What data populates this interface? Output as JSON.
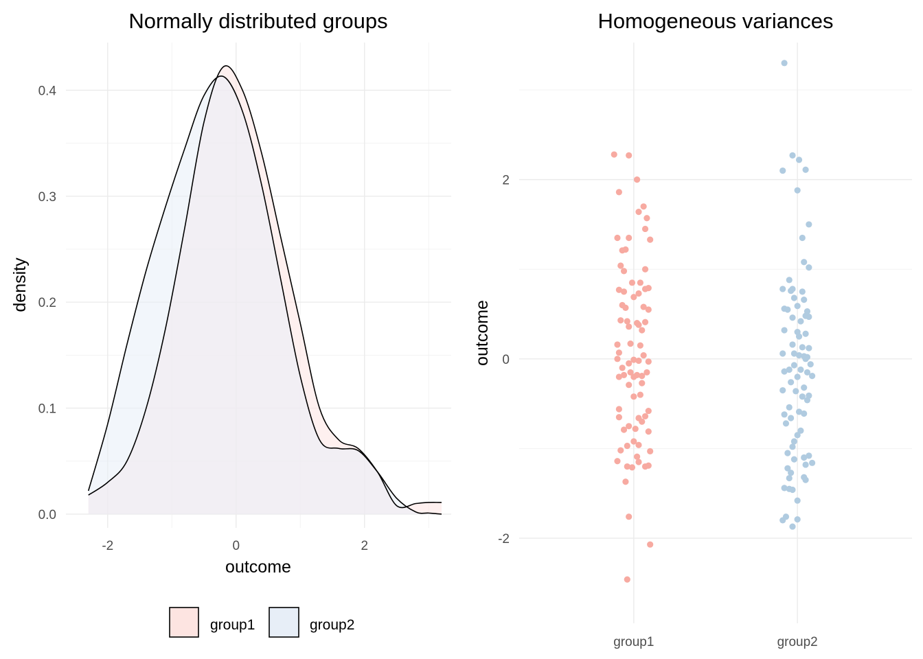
{
  "chart_data": [
    {
      "type": "area",
      "title": "Normally distributed groups",
      "xlabel": "outcome",
      "ylabel": "density",
      "xlim": [
        -2.65,
        3.35
      ],
      "ylim": [
        -0.013,
        0.445
      ],
      "x_ticks": [
        -2,
        0,
        2
      ],
      "x_tick_labels": [
        "-2",
        "0",
        "2"
      ],
      "y_ticks": [
        0.0,
        0.1,
        0.2,
        0.3,
        0.4
      ],
      "y_tick_labels": [
        "0.0",
        "0.1",
        "0.2",
        "0.3",
        "0.4"
      ],
      "grid": true,
      "legend_position": "bottom",
      "series": [
        {
          "name": "group1",
          "fill": "#fde4e1",
          "stroke": "#000000",
          "x": [
            -2.3,
            -2.0,
            -1.7,
            -1.4,
            -1.1,
            -0.8,
            -0.5,
            -0.2,
            0.1,
            0.4,
            0.7,
            1.0,
            1.3,
            1.6,
            1.9,
            2.2,
            2.5,
            2.8,
            3.0,
            3.2
          ],
          "y": [
            0.018,
            0.03,
            0.05,
            0.1,
            0.175,
            0.27,
            0.37,
            0.422,
            0.4,
            0.34,
            0.26,
            0.18,
            0.1,
            0.07,
            0.062,
            0.04,
            0.008,
            0.01,
            0.011,
            0.011
          ]
        },
        {
          "name": "group2",
          "fill": "#e7eef7",
          "stroke": "#000000",
          "x": [
            -2.3,
            -2.0,
            -1.7,
            -1.4,
            -1.1,
            -0.8,
            -0.5,
            -0.2,
            0.1,
            0.4,
            0.7,
            1.0,
            1.3,
            1.6,
            1.9,
            2.2,
            2.5,
            2.8,
            3.0,
            3.2
          ],
          "y": [
            0.022,
            0.085,
            0.16,
            0.23,
            0.29,
            0.345,
            0.395,
            0.413,
            0.38,
            0.31,
            0.22,
            0.13,
            0.07,
            0.062,
            0.06,
            0.04,
            0.015,
            0.002,
            0.001,
            0.0
          ]
        }
      ]
    },
    {
      "type": "scatter",
      "title": "Homogeneous variances",
      "xlabel": "",
      "ylabel": "outcome",
      "categories": [
        "group1",
        "group2"
      ],
      "ylim": [
        -2.75,
        3.3
      ],
      "y_ticks": [
        -2,
        0,
        2
      ],
      "y_tick_labels": [
        "-2",
        "0",
        "2"
      ],
      "grid": true,
      "series": [
        {
          "name": "group1",
          "color": "#f7aaa1",
          "points": [
            [
              -0.12,
              2.28
            ],
            [
              -0.03,
              2.27
            ],
            [
              0.02,
              2.0
            ],
            [
              -0.09,
              1.86
            ],
            [
              0.06,
              1.7
            ],
            [
              0.03,
              1.64
            ],
            [
              0.08,
              1.57
            ],
            [
              0.07,
              1.45
            ],
            [
              -0.1,
              1.35
            ],
            [
              -0.03,
              1.35
            ],
            [
              0.1,
              1.33
            ],
            [
              -0.07,
              1.21
            ],
            [
              -0.05,
              1.22
            ],
            [
              -0.08,
              1.04
            ],
            [
              -0.06,
              0.98
            ],
            [
              0.07,
              1.0
            ],
            [
              -0.01,
              0.85
            ],
            [
              0.04,
              0.85
            ],
            [
              -0.09,
              0.77
            ],
            [
              -0.06,
              0.75
            ],
            [
              0.07,
              0.78
            ],
            [
              0.09,
              0.79
            ],
            [
              0.03,
              0.73
            ],
            [
              0.0,
              0.69
            ],
            [
              -0.07,
              0.6
            ],
            [
              -0.05,
              0.57
            ],
            [
              0.06,
              0.58
            ],
            [
              0.09,
              0.55
            ],
            [
              -0.08,
              0.43
            ],
            [
              0.07,
              0.41
            ],
            [
              -0.03,
              0.36
            ],
            [
              -0.04,
              0.42
            ],
            [
              0.02,
              0.4
            ],
            [
              0.03,
              0.38
            ],
            [
              0.05,
              0.32
            ],
            [
              -0.1,
              0.16
            ],
            [
              -0.02,
              0.17
            ],
            [
              0.04,
              0.15
            ],
            [
              -0.09,
              0.07
            ],
            [
              0.06,
              0.04
            ],
            [
              -0.1,
              0.0
            ],
            [
              0.0,
              -0.01
            ],
            [
              0.03,
              -0.02
            ],
            [
              0.09,
              -0.03
            ],
            [
              -0.03,
              -0.05
            ],
            [
              -0.07,
              -0.1
            ],
            [
              -0.02,
              -0.15
            ],
            [
              0.02,
              -0.18
            ],
            [
              0.0,
              -0.2
            ],
            [
              -0.09,
              -0.2
            ],
            [
              -0.06,
              -0.18
            ],
            [
              0.05,
              -0.19
            ],
            [
              0.08,
              -0.15
            ],
            [
              -0.03,
              -0.29
            ],
            [
              0.05,
              -0.27
            ],
            [
              0.0,
              -0.42
            ],
            [
              0.04,
              -0.4
            ],
            [
              -0.09,
              -0.56
            ],
            [
              0.09,
              -0.58
            ],
            [
              0.07,
              -0.64
            ],
            [
              0.03,
              -0.66
            ],
            [
              -0.09,
              -0.65
            ],
            [
              0.05,
              -0.7
            ],
            [
              -0.03,
              -0.75
            ],
            [
              -0.06,
              -0.79
            ],
            [
              0.01,
              -0.78
            ],
            [
              0.09,
              -0.81
            ],
            [
              0.0,
              -0.92
            ],
            [
              0.03,
              -0.96
            ],
            [
              -0.04,
              -0.97
            ],
            [
              -0.08,
              -1.02
            ],
            [
              0.1,
              -1.03
            ],
            [
              0.02,
              -1.09
            ],
            [
              -0.1,
              -1.14
            ],
            [
              0.03,
              -1.15
            ],
            [
              -0.04,
              -1.2
            ],
            [
              -0.01,
              -1.21
            ],
            [
              0.07,
              -1.2
            ],
            [
              0.09,
              -1.19
            ],
            [
              -0.05,
              -1.37
            ],
            [
              -0.03,
              -1.76
            ],
            [
              0.1,
              -2.07
            ],
            [
              -0.04,
              -2.46
            ]
          ]
        },
        {
          "name": "group2",
          "color": "#b0cbe0",
          "points": [
            [
              -0.08,
              3.3
            ],
            [
              -0.03,
              2.27
            ],
            [
              0.01,
              2.22
            ],
            [
              0.05,
              2.11
            ],
            [
              -0.09,
              2.1
            ],
            [
              0.0,
              1.88
            ],
            [
              0.07,
              1.5
            ],
            [
              0.03,
              1.35
            ],
            [
              0.04,
              1.08
            ],
            [
              0.07,
              1.02
            ],
            [
              -0.05,
              0.88
            ],
            [
              -0.03,
              0.78
            ],
            [
              -0.04,
              0.76
            ],
            [
              -0.09,
              0.78
            ],
            [
              0.03,
              0.75
            ],
            [
              -0.02,
              0.68
            ],
            [
              0.04,
              0.66
            ],
            [
              0.0,
              0.59
            ],
            [
              -0.08,
              0.56
            ],
            [
              -0.06,
              0.55
            ],
            [
              0.06,
              0.53
            ],
            [
              0.05,
              0.48
            ],
            [
              0.07,
              0.47
            ],
            [
              -0.03,
              0.46
            ],
            [
              0.02,
              0.42
            ],
            [
              -0.08,
              0.32
            ],
            [
              0.0,
              0.3
            ],
            [
              0.05,
              0.28
            ],
            [
              0.01,
              0.25
            ],
            [
              -0.03,
              0.16
            ],
            [
              0.03,
              0.13
            ],
            [
              0.07,
              0.12
            ],
            [
              -0.09,
              0.06
            ],
            [
              -0.02,
              0.06
            ],
            [
              0.01,
              0.04
            ],
            [
              0.04,
              0.03
            ],
            [
              0.06,
              0.02
            ],
            [
              0.05,
              0.0
            ],
            [
              -0.02,
              -0.07
            ],
            [
              0.08,
              -0.06
            ],
            [
              -0.05,
              -0.12
            ],
            [
              -0.08,
              -0.14
            ],
            [
              0.02,
              -0.12
            ],
            [
              0.06,
              -0.15
            ],
            [
              0.09,
              -0.19
            ],
            [
              0.0,
              -0.2
            ],
            [
              -0.04,
              -0.26
            ],
            [
              0.04,
              -0.32
            ],
            [
              -0.01,
              -0.36
            ],
            [
              -0.09,
              -0.35
            ],
            [
              0.03,
              -0.42
            ],
            [
              0.07,
              -0.41
            ],
            [
              0.06,
              -0.46
            ],
            [
              -0.05,
              -0.54
            ],
            [
              0.01,
              -0.59
            ],
            [
              0.04,
              -0.61
            ],
            [
              -0.08,
              -0.62
            ],
            [
              -0.04,
              -0.66
            ],
            [
              -0.07,
              -0.72
            ],
            [
              0.02,
              -0.8
            ],
            [
              0.0,
              -0.85
            ],
            [
              -0.02,
              -0.92
            ],
            [
              -0.03,
              -0.98
            ],
            [
              -0.06,
              -1.05
            ],
            [
              0.04,
              -1.1
            ],
            [
              0.07,
              -1.08
            ],
            [
              -0.02,
              -1.12
            ],
            [
              0.09,
              -1.16
            ],
            [
              -0.06,
              -1.22
            ],
            [
              0.05,
              -1.18
            ],
            [
              -0.04,
              -1.27
            ],
            [
              -0.05,
              -1.33
            ],
            [
              0.04,
              -1.32
            ],
            [
              0.05,
              -1.35
            ],
            [
              -0.08,
              -1.44
            ],
            [
              -0.05,
              -1.45
            ],
            [
              -0.03,
              -1.46
            ],
            [
              0.0,
              -1.58
            ],
            [
              -0.07,
              -1.76
            ],
            [
              -0.09,
              -1.8
            ],
            [
              0.0,
              -1.79
            ],
            [
              -0.03,
              -1.87
            ]
          ]
        }
      ]
    }
  ]
}
